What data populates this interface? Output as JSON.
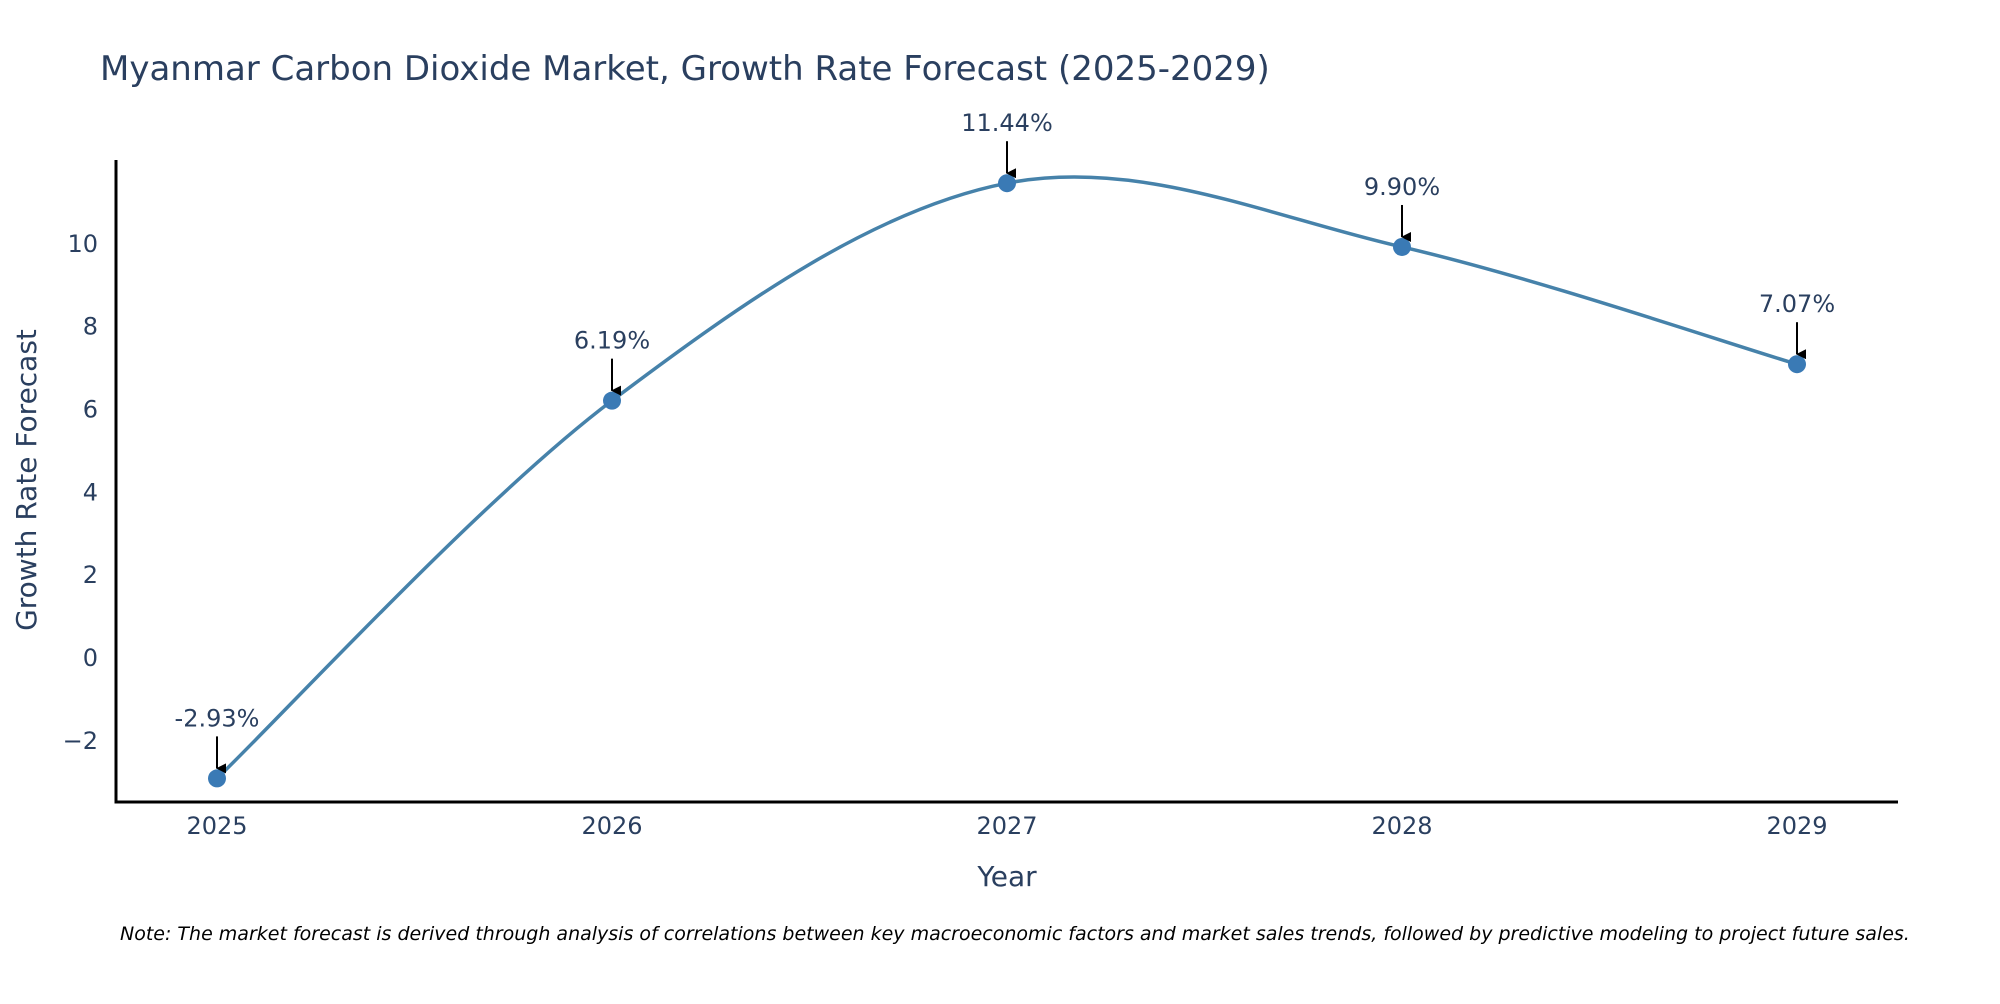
{
  "chart_data": {
    "type": "line",
    "title": "Myanmar Carbon Dioxide Market, Growth Rate Forecast (2025-2029)",
    "xlabel": "Year",
    "ylabel": "Growth Rate Forecast",
    "categories": [
      "2025",
      "2026",
      "2027",
      "2028",
      "2029"
    ],
    "series": [
      {
        "name": "Growth Rate Forecast",
        "values": [
          -2.93,
          6.19,
          11.44,
          9.9,
          7.07
        ]
      }
    ],
    "data_labels": [
      "-2.93%",
      "6.19%",
      "11.44%",
      "9.90%",
      "7.07%"
    ],
    "ylim": [
      -3.5,
      12
    ],
    "yticks": [
      -2,
      0,
      2,
      4,
      6,
      8,
      10
    ],
    "ytick_labels": [
      "−2",
      "0",
      "2",
      "4",
      "6",
      "8",
      "10"
    ],
    "grid": false,
    "legend": "none",
    "note": "Note: The market forecast is derived through analysis of correlations between key macroeconomic factors and market sales trends, followed by predictive modeling to project future sales.",
    "colors": {
      "line": "#4682aa",
      "marker": "#3a7ab5",
      "text": "#2a3f5f",
      "axis": "#000000",
      "arrow": "#000000"
    }
  }
}
